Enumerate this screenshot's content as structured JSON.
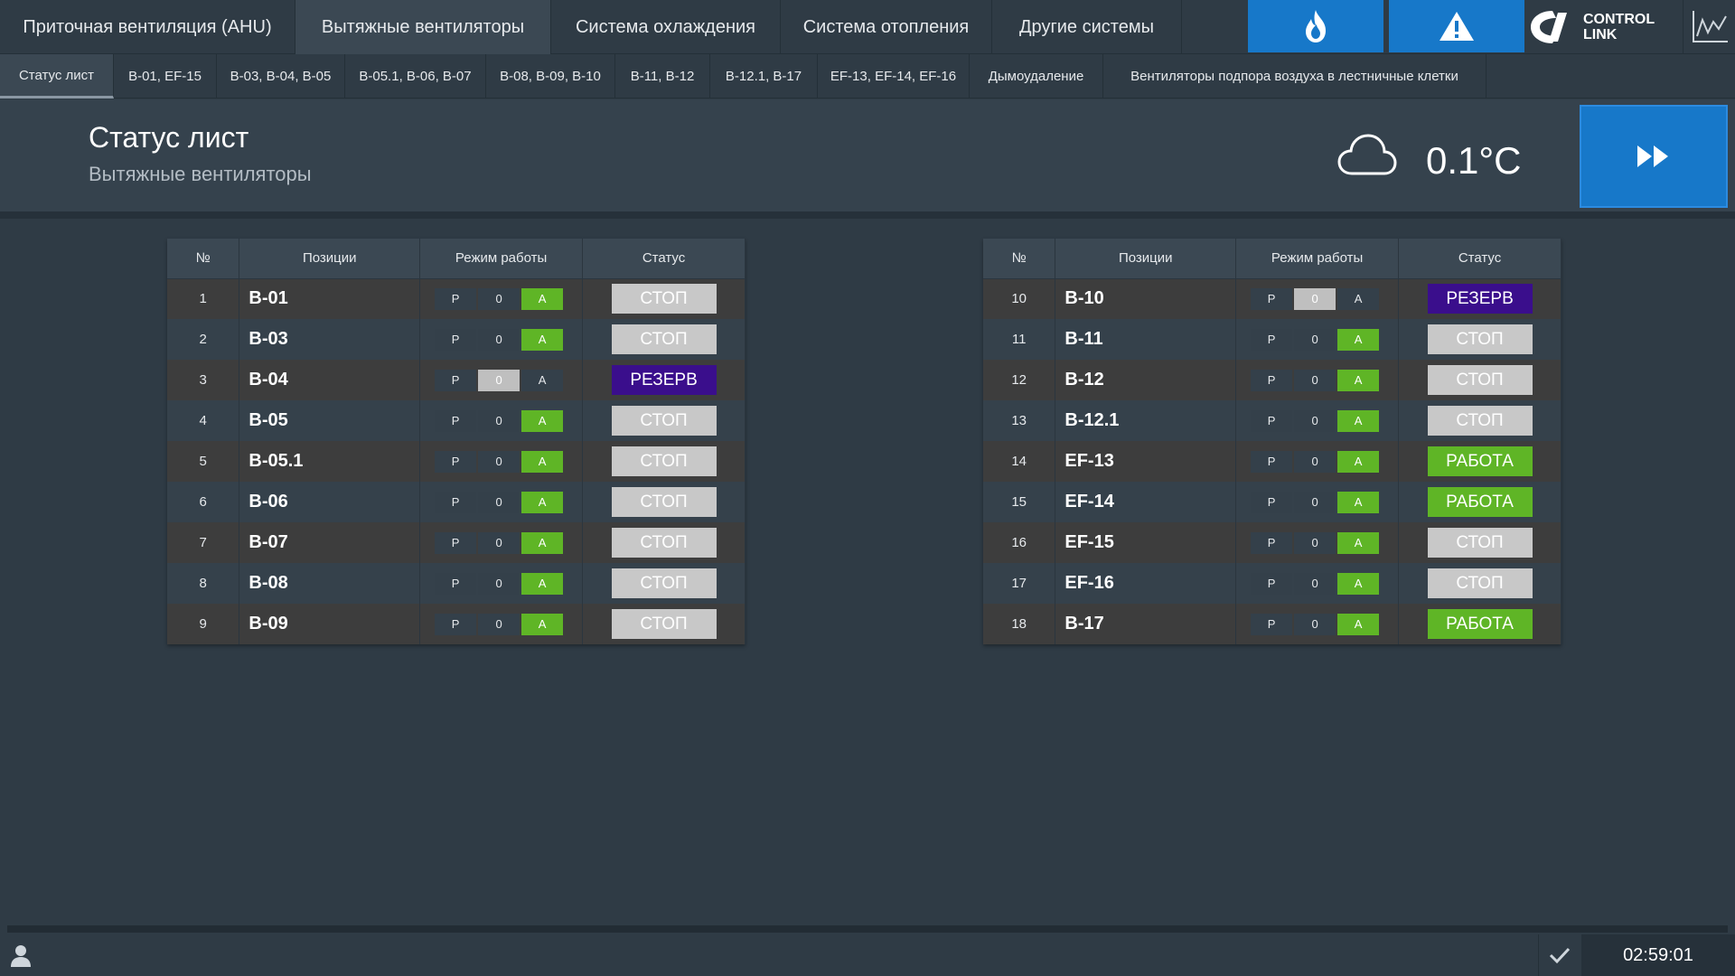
{
  "nav": {
    "tabs": [
      {
        "label": "Приточная вентиляция (AHU)"
      },
      {
        "label": "Вытяжные вентиляторы"
      },
      {
        "label": "Система охлаждения"
      },
      {
        "label": "Система отопления"
      },
      {
        "label": "Другие системы"
      }
    ],
    "fire_icon": "flame-icon",
    "alarm_icon": "warning-icon",
    "logo_line1": "CONTROL",
    "logo_line2": "LINK",
    "chart_icon": "trend-chart-icon"
  },
  "subtabs": [
    {
      "label": "Статус лист"
    },
    {
      "label": "В-01, EF-15"
    },
    {
      "label": "В-03, В-04, В-05"
    },
    {
      "label": "В-05.1, В-06, В-07"
    },
    {
      "label": "В-08, В-09, В-10"
    },
    {
      "label": "В-11, В-12"
    },
    {
      "label": "В-12.1, В-17"
    },
    {
      "label": "EF-13, EF-14, EF-16"
    },
    {
      "label": "Дымоудаление"
    },
    {
      "label": "Вентиляторы подпора воздуха в лестничные клетки"
    }
  ],
  "header": {
    "title": "Статус лист",
    "subtitle": "Вытяжные вентиляторы",
    "weather_icon": "cloud-icon",
    "temperature": "0.1°C",
    "next_icon": "fast-forward-icon"
  },
  "table": {
    "headers": {
      "num": "№",
      "pos": "Позиции",
      "mode": "Режим работы",
      "status": "Статус"
    },
    "mode_labels": {
      "p": "Р",
      "zero": "0",
      "a": "А"
    },
    "left": [
      {
        "num": "1",
        "pos": "В-01",
        "mode": "A",
        "status": "СТОП",
        "kind": "stop"
      },
      {
        "num": "2",
        "pos": "В-03",
        "mode": "A",
        "status": "СТОП",
        "kind": "stop"
      },
      {
        "num": "3",
        "pos": "В-04",
        "mode": "0",
        "status": "РЕЗЕРВ",
        "kind": "reserve"
      },
      {
        "num": "4",
        "pos": "В-05",
        "mode": "A",
        "status": "СТОП",
        "kind": "stop"
      },
      {
        "num": "5",
        "pos": "В-05.1",
        "mode": "A",
        "status": "СТОП",
        "kind": "stop"
      },
      {
        "num": "6",
        "pos": "В-06",
        "mode": "A",
        "status": "СТОП",
        "kind": "stop"
      },
      {
        "num": "7",
        "pos": "В-07",
        "mode": "A",
        "status": "СТОП",
        "kind": "stop"
      },
      {
        "num": "8",
        "pos": "В-08",
        "mode": "A",
        "status": "СТОП",
        "kind": "stop"
      },
      {
        "num": "9",
        "pos": "В-09",
        "mode": "A",
        "status": "СТОП",
        "kind": "stop"
      }
    ],
    "right": [
      {
        "num": "10",
        "pos": "В-10",
        "mode": "0",
        "status": "РЕЗЕРВ",
        "kind": "reserve"
      },
      {
        "num": "11",
        "pos": "В-11",
        "mode": "A",
        "status": "СТОП",
        "kind": "stop"
      },
      {
        "num": "12",
        "pos": "В-12",
        "mode": "A",
        "status": "СТОП",
        "kind": "stop"
      },
      {
        "num": "13",
        "pos": "В-12.1",
        "mode": "A",
        "status": "СТОП",
        "kind": "stop"
      },
      {
        "num": "14",
        "pos": "EF-13",
        "mode": "A",
        "status": "РАБОТА",
        "kind": "run"
      },
      {
        "num": "15",
        "pos": "EF-14",
        "mode": "A",
        "status": "РАБОТА",
        "kind": "run"
      },
      {
        "num": "16",
        "pos": "EF-15",
        "mode": "A",
        "status": "СТОП",
        "kind": "stop"
      },
      {
        "num": "17",
        "pos": "EF-16",
        "mode": "A",
        "status": "СТОП",
        "kind": "stop"
      },
      {
        "num": "18",
        "pos": "В-17",
        "mode": "A",
        "status": "РАБОТА",
        "kind": "run"
      }
    ]
  },
  "colors": {
    "accent_blue": "#1778c9",
    "run_green": "#5fb526",
    "reserve_purple": "#3a0e8c",
    "stop_grey": "#c8c8c8"
  },
  "footer": {
    "user_icon": "user-icon",
    "check_icon": "checkmark-icon",
    "time": "02:59:01"
  }
}
